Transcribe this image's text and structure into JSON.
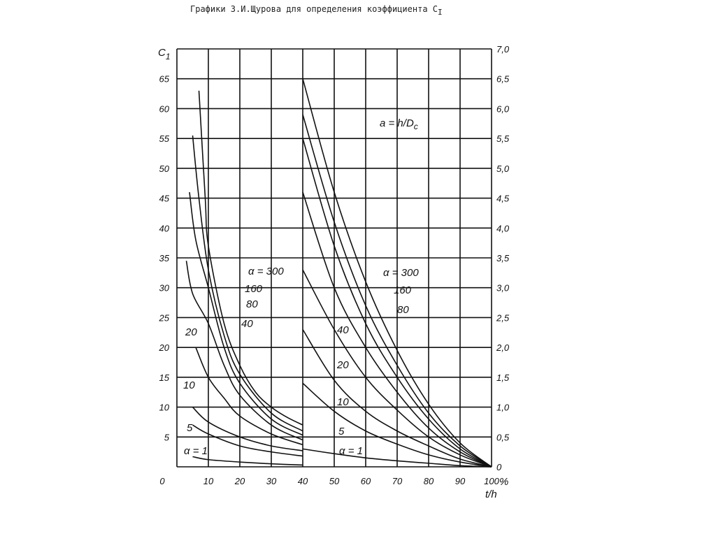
{
  "chart_data": {
    "type": "line",
    "title": "Графики З.И.Щурова для определения коэффициента С",
    "title_subscript": "I",
    "ylabel_left": "C",
    "ylabel_left_subscript": "1",
    "xlabel": "t/h",
    "x_unit": "%",
    "xlim": [
      0,
      100
    ],
    "ylim_left": [
      0,
      70
    ],
    "ylim_right": [
      0,
      7.0
    ],
    "grid": true,
    "x_ticks": [
      "0",
      "10",
      "20",
      "30",
      "40",
      "50",
      "60",
      "70",
      "80",
      "90",
      "100"
    ],
    "y_ticks_left": [
      "5",
      "10",
      "15",
      "20",
      "25",
      "30",
      "35",
      "40",
      "45",
      "50",
      "55",
      "60",
      "65"
    ],
    "y_ticks_right": [
      "0",
      "0,5",
      "1,0",
      "1,5",
      "2,0",
      "2,5",
      "3,0",
      "3,5",
      "4,0",
      "4,5",
      "5,0",
      "5,5",
      "6,0",
      "6,5",
      "7,0"
    ],
    "parameter_note": "a = h/D",
    "parameter_note_subscript": "c",
    "panels": [
      {
        "x_range": [
          0,
          40
        ],
        "axis": "left",
        "series": [
          {
            "name": "α = 300",
            "x": [
              7,
              9,
              10,
              15,
              20,
              25,
              30,
              35,
              40
            ],
            "y": [
              63,
              45,
              37,
              24,
              17,
              12.5,
              10,
              8.3,
              7
            ]
          },
          {
            "name": "160",
            "x": [
              5,
              7,
              10,
              15,
              20,
              30,
              40
            ],
            "y": [
              55.5,
              45,
              33,
              22,
              15.5,
              9,
              6
            ]
          },
          {
            "name": "80",
            "x": [
              4,
              6,
              10,
              15,
              20,
              30,
              40
            ],
            "y": [
              46,
              38,
              30,
              20,
              14,
              8,
              5.3
            ]
          },
          {
            "name": "40",
            "x": [
              3,
              5,
              10,
              15,
              20,
              30,
              40
            ],
            "y": [
              34.5,
              29,
              24,
              17,
              12,
              7,
              4.5
            ]
          },
          {
            "name": "20",
            "x": [
              6,
              10,
              15,
              20,
              30,
              40
            ],
            "y": [
              20,
              15,
              11.5,
              8.5,
              5.5,
              3.7
            ]
          },
          {
            "name": "10",
            "x": [
              5,
              10,
              20,
              30,
              40
            ],
            "y": [
              10,
              7.5,
              5,
              3.5,
              2.7
            ]
          },
          {
            "name": "5",
            "x": [
              5,
              10,
              20,
              30,
              40
            ],
            "y": [
              7,
              5.5,
              3.5,
              2.5,
              1.8
            ]
          },
          {
            "name": "α = 1",
            "x": [
              5,
              10,
              20,
              30,
              40
            ],
            "y": [
              1.7,
              1.2,
              0.8,
              0.5,
              0.3
            ]
          }
        ]
      },
      {
        "x_range": [
          40,
          100
        ],
        "axis": "right",
        "series": [
          {
            "name": "α = 300",
            "x": [
              40,
              50,
              60,
              70,
              80,
              90,
              100
            ],
            "y": [
              6.5,
              4.6,
              3.1,
              1.95,
              1.05,
              0.4,
              0
            ]
          },
          {
            "name": "160",
            "x": [
              40,
              50,
              60,
              70,
              80,
              90,
              100
            ],
            "y": [
              5.9,
              4.1,
              2.7,
              1.7,
              0.9,
              0.35,
              0
            ]
          },
          {
            "name": "80",
            "x": [
              40,
              50,
              60,
              70,
              80,
              90,
              100
            ],
            "y": [
              5.5,
              3.7,
              2.4,
              1.5,
              0.8,
              0.3,
              0
            ]
          },
          {
            "name": "40",
            "x": [
              40,
              50,
              60,
              70,
              80,
              90,
              100
            ],
            "y": [
              4.6,
              3.0,
              2.0,
              1.25,
              0.65,
              0.25,
              0
            ]
          },
          {
            "name": "20",
            "x": [
              40,
              50,
              60,
              70,
              80,
              90,
              100
            ],
            "y": [
              3.3,
              2.3,
              1.5,
              0.95,
              0.5,
              0.2,
              0
            ]
          },
          {
            "name": "10",
            "x": [
              40,
              50,
              60,
              70,
              80,
              90,
              100
            ],
            "y": [
              2.3,
              1.45,
              0.93,
              0.6,
              0.35,
              0.13,
              0
            ]
          },
          {
            "name": "5",
            "x": [
              40,
              50,
              60,
              70,
              80,
              90,
              100
            ],
            "y": [
              1.4,
              0.93,
              0.6,
              0.38,
              0.2,
              0.08,
              0
            ]
          },
          {
            "name": "α = 1",
            "x": [
              40,
              50,
              60,
              70,
              80,
              90,
              100
            ],
            "y": [
              0.3,
              0.22,
              0.15,
              0.1,
              0.06,
              0.02,
              0
            ]
          }
        ]
      }
    ]
  }
}
